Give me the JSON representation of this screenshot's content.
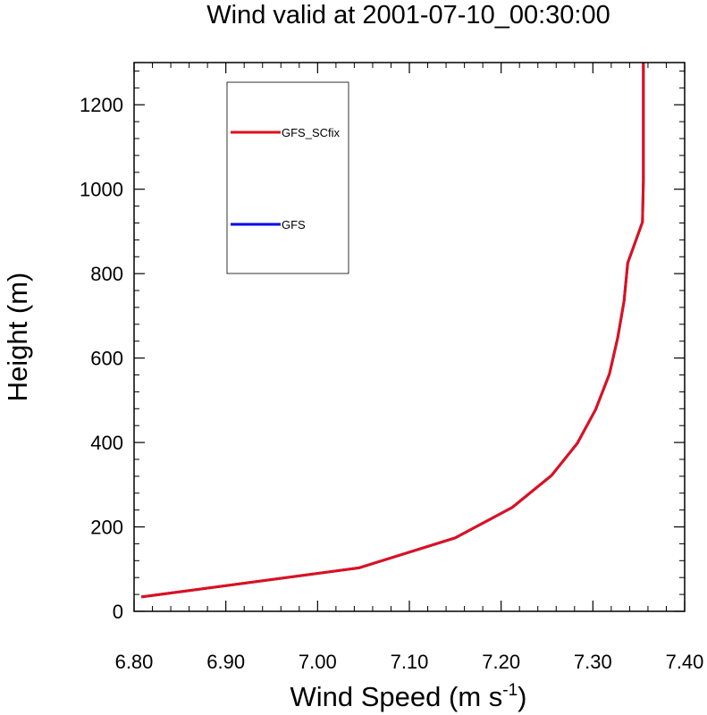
{
  "chart_data": {
    "type": "line",
    "title": "Wind valid at 2001-07-10_00:30:00",
    "xlabel": "Wind Speed (m s",
    "xlabel_superscript": "-1",
    "xlabel_suffix": ")",
    "ylabel": "Height (m)",
    "xlim": [
      6.8,
      7.4
    ],
    "ylim": [
      0,
      1300
    ],
    "xticks": [
      6.8,
      6.9,
      7.0,
      7.1,
      7.2,
      7.3,
      7.4
    ],
    "xtick_labels": [
      "6.80",
      "6.90",
      "7.00",
      "7.10",
      "7.20",
      "7.30",
      "7.40"
    ],
    "yticks": [
      0,
      200,
      400,
      600,
      800,
      1000,
      1200
    ],
    "ytick_labels": [
      "0",
      "200",
      "400",
      "600",
      "800",
      "1000",
      "1200"
    ],
    "grid": false,
    "legend_position": "top-left",
    "series": [
      {
        "name": "GFS",
        "color": "#0000ee",
        "points": [
          [
            6.808,
            34
          ],
          [
            7.045,
            103
          ],
          [
            7.15,
            174
          ],
          [
            7.212,
            246
          ],
          [
            7.255,
            322
          ],
          [
            7.283,
            398
          ],
          [
            7.303,
            478
          ],
          [
            7.318,
            562
          ],
          [
            7.327,
            648
          ],
          [
            7.334,
            735
          ],
          [
            7.338,
            825
          ],
          [
            7.354,
            922
          ],
          [
            7.355,
            1020
          ],
          [
            7.355,
            1120
          ],
          [
            7.355,
            1300
          ]
        ]
      },
      {
        "name": "GFS_SCfix",
        "color": "#e0101a",
        "points": [
          [
            6.808,
            34
          ],
          [
            7.045,
            103
          ],
          [
            7.15,
            174
          ],
          [
            7.212,
            246
          ],
          [
            7.255,
            322
          ],
          [
            7.283,
            398
          ],
          [
            7.303,
            478
          ],
          [
            7.318,
            562
          ],
          [
            7.327,
            648
          ],
          [
            7.334,
            735
          ],
          [
            7.338,
            825
          ],
          [
            7.354,
            922
          ],
          [
            7.355,
            1020
          ],
          [
            7.355,
            1120
          ],
          [
            7.355,
            1300
          ]
        ]
      }
    ],
    "legend": [
      {
        "label": "GFS_SCfix",
        "color": "#e0101a"
      },
      {
        "label": "GFS",
        "color": "#0000ee"
      }
    ]
  }
}
